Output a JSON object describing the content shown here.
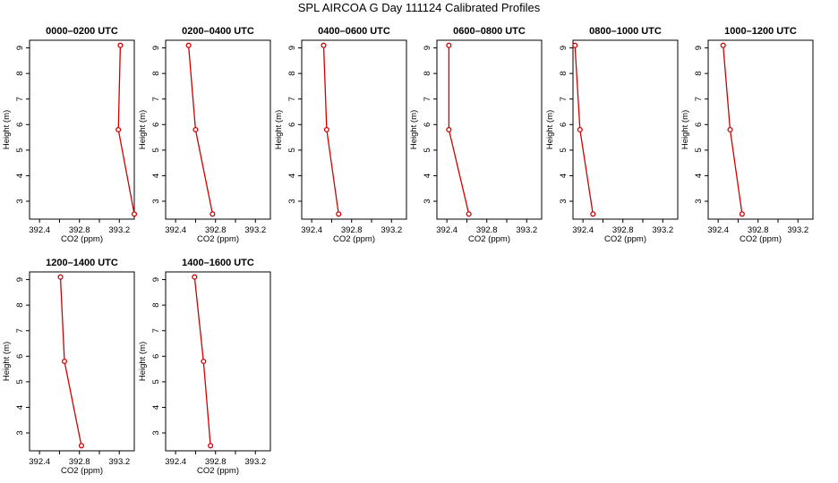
{
  "title": "SPL AIRCOA G  Day 111124  Calibrated Profiles",
  "chart_data": [
    {
      "type": "line",
      "title": "0000–0200 UTC",
      "xlabel": "CO2 (ppm)",
      "ylabel": "Height (m)",
      "xlim": [
        392.3,
        393.35
      ],
      "ylim": [
        2.3,
        9.3
      ],
      "xticks": [
        "392.4",
        "392.8",
        "393.2"
      ],
      "yticks": [
        "3",
        "4",
        "5",
        "6",
        "7",
        "8",
        "9"
      ],
      "series": [
        {
          "x": [
            393.21,
            393.19,
            393.35
          ],
          "y": [
            9.1,
            5.8,
            2.5
          ]
        }
      ]
    },
    {
      "type": "line",
      "title": "0200–0400 UTC",
      "xlabel": "CO2 (ppm)",
      "ylabel": "Height (m)",
      "xlim": [
        392.3,
        393.35
      ],
      "ylim": [
        2.3,
        9.3
      ],
      "xticks": [
        "392.4",
        "392.8",
        "393.2"
      ],
      "yticks": [
        "3",
        "4",
        "5",
        "6",
        "7",
        "8",
        "9"
      ],
      "series": [
        {
          "x": [
            392.53,
            392.6,
            392.77
          ],
          "y": [
            9.1,
            5.8,
            2.5
          ]
        }
      ]
    },
    {
      "type": "line",
      "title": "0400–0600 UTC",
      "xlabel": "CO2 (ppm)",
      "ylabel": "Height (m)",
      "xlim": [
        392.3,
        393.35
      ],
      "ylim": [
        2.3,
        9.3
      ],
      "xticks": [
        "392.4",
        "392.8",
        "393.2"
      ],
      "yticks": [
        "3",
        "4",
        "5",
        "6",
        "7",
        "8",
        "9"
      ],
      "series": [
        {
          "x": [
            392.52,
            392.55,
            392.67
          ],
          "y": [
            9.1,
            5.8,
            2.5
          ]
        }
      ]
    },
    {
      "type": "line",
      "title": "0600–0800 UTC",
      "xlabel": "CO2 (ppm)",
      "ylabel": "Height (m)",
      "xlim": [
        392.3,
        393.35
      ],
      "ylim": [
        2.3,
        9.3
      ],
      "xticks": [
        "392.4",
        "392.8",
        "393.2"
      ],
      "yticks": [
        "3",
        "4",
        "5",
        "6",
        "7",
        "8",
        "9"
      ],
      "series": [
        {
          "x": [
            392.42,
            392.42,
            392.62
          ],
          "y": [
            9.1,
            5.8,
            2.5
          ]
        }
      ]
    },
    {
      "type": "line",
      "title": "0800–1000 UTC",
      "xlabel": "CO2 (ppm)",
      "ylabel": "Height (m)",
      "xlim": [
        392.3,
        393.35
      ],
      "ylim": [
        2.3,
        9.3
      ],
      "xticks": [
        "392.4",
        "392.8",
        "393.2"
      ],
      "yticks": [
        "3",
        "4",
        "5",
        "6",
        "7",
        "8",
        "9"
      ],
      "series": [
        {
          "x": [
            392.32,
            392.37,
            392.5
          ],
          "y": [
            9.1,
            5.8,
            2.5
          ]
        }
      ]
    },
    {
      "type": "line",
      "title": "1000–1200 UTC",
      "xlabel": "CO2 (ppm)",
      "ylabel": "Height (m)",
      "xlim": [
        392.3,
        393.35
      ],
      "ylim": [
        2.3,
        9.3
      ],
      "xticks": [
        "392.4",
        "392.8",
        "393.2"
      ],
      "yticks": [
        "3",
        "4",
        "5",
        "6",
        "7",
        "8",
        "9"
      ],
      "series": [
        {
          "x": [
            392.45,
            392.52,
            392.64
          ],
          "y": [
            9.1,
            5.8,
            2.5
          ]
        }
      ]
    },
    {
      "type": "line",
      "title": "1200–1400 UTC",
      "xlabel": "CO2 (ppm)",
      "ylabel": "Height (m)",
      "xlim": [
        392.3,
        393.35
      ],
      "ylim": [
        2.3,
        9.3
      ],
      "xticks": [
        "392.4",
        "392.8",
        "393.2"
      ],
      "yticks": [
        "3",
        "4",
        "5",
        "6",
        "7",
        "8",
        "9"
      ],
      "series": [
        {
          "x": [
            392.61,
            392.65,
            392.82
          ],
          "y": [
            9.1,
            5.8,
            2.5
          ]
        }
      ]
    },
    {
      "type": "line",
      "title": "1400–1600 UTC",
      "xlabel": "CO2 (ppm)",
      "ylabel": "Height (m)",
      "xlim": [
        392.3,
        393.35
      ],
      "ylim": [
        2.3,
        9.3
      ],
      "xticks": [
        "392.4",
        "392.8",
        "393.2"
      ],
      "yticks": [
        "3",
        "4",
        "5",
        "6",
        "7",
        "8",
        "9"
      ],
      "series": [
        {
          "x": [
            392.59,
            392.68,
            392.75
          ],
          "y": [
            9.1,
            5.8,
            2.5
          ]
        }
      ]
    }
  ],
  "colors": {
    "series": "#d10000",
    "marker": "#d10000",
    "axis": "#000000"
  }
}
